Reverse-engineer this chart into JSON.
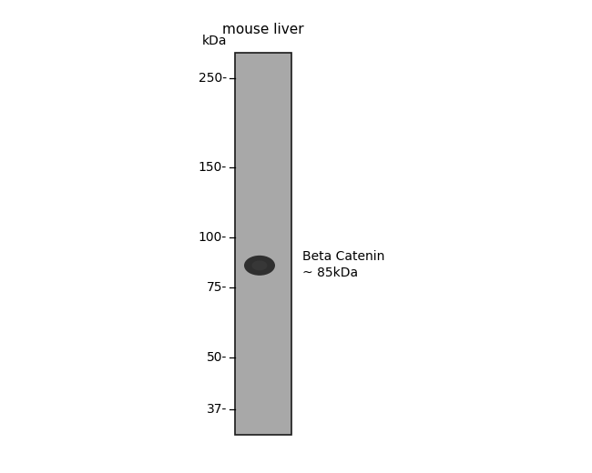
{
  "title": "mouse liver",
  "kda_label": "kDa",
  "marker_labels": [
    "250",
    "150",
    "100",
    "75",
    "50",
    "37"
  ],
  "marker_positions": [
    250,
    150,
    100,
    75,
    50,
    37
  ],
  "band_kda": 85,
  "band_annotation_line1": "Beta Catenin",
  "band_annotation_line2": "~ 85kDa",
  "gel_bg_color": "#a8a8a8",
  "band_color": "#222222",
  "background_color": "#ffffff",
  "ymin": 32,
  "ymax": 290,
  "font_size_title": 11,
  "font_size_markers": 10,
  "font_size_kda": 10,
  "font_size_annotation": 10
}
